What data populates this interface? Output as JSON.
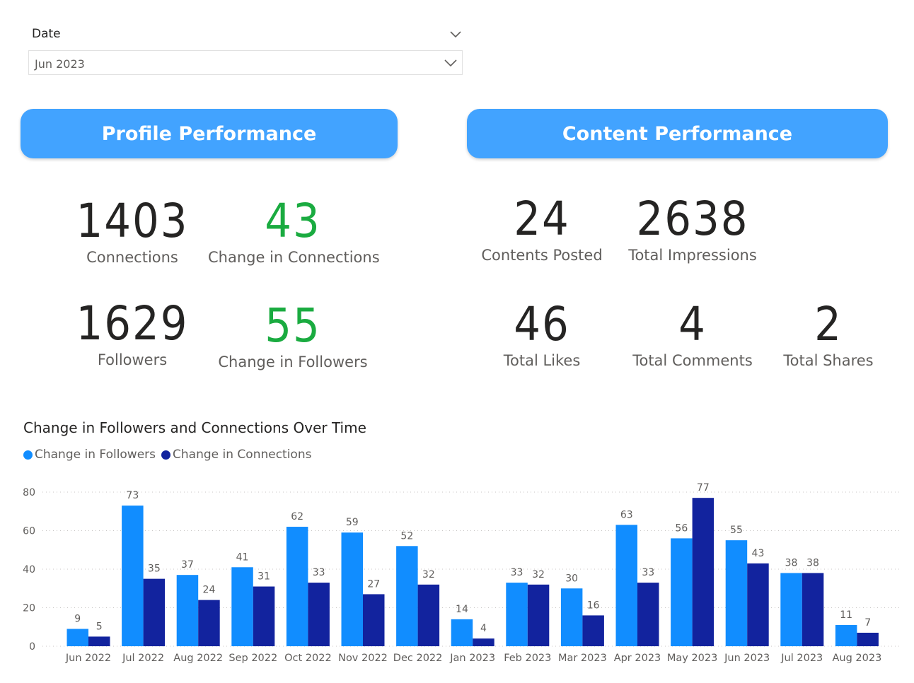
{
  "slicer": {
    "title": "Date",
    "value": "Jun 2023"
  },
  "sections": {
    "profile": "Profile Performance",
    "content": "Content Performance"
  },
  "kpis": {
    "connections": {
      "value": "1403",
      "label": "Connections"
    },
    "change_connections": {
      "value": "43",
      "label": "Change in Connections"
    },
    "followers": {
      "value": "1629",
      "label": "Followers"
    },
    "change_followers": {
      "value": "55",
      "label": "Change in Followers"
    },
    "contents_posted": {
      "value": "24",
      "label": "Contents Posted"
    },
    "total_impressions": {
      "value": "2638",
      "label": "Total Impressions"
    },
    "total_likes": {
      "value": "46",
      "label": "Total Likes"
    },
    "total_comments": {
      "value": "4",
      "label": "Total Comments"
    },
    "total_shares": {
      "value": "2",
      "label": "Total Shares"
    }
  },
  "colors": {
    "header": "#42a3ff",
    "positive": "#1aab40",
    "followers": "#118dff",
    "connections": "#12239e"
  },
  "chart_data": {
    "type": "bar",
    "title": "Change in Followers and Connections Over Time",
    "categories": [
      "Jun 2022",
      "Jul 2022",
      "Aug 2022",
      "Sep 2022",
      "Oct 2022",
      "Nov 2022",
      "Dec 2022",
      "Jan 2023",
      "Feb 2023",
      "Mar 2023",
      "Apr 2023",
      "May 2023",
      "Jun 2023",
      "Jul 2023",
      "Aug 2023"
    ],
    "series": [
      {
        "name": "Change in Followers",
        "color": "#118dff",
        "values": [
          9,
          73,
          37,
          41,
          62,
          59,
          52,
          14,
          33,
          30,
          63,
          56,
          55,
          38,
          11
        ]
      },
      {
        "name": "Change in Connections",
        "color": "#12239e",
        "values": [
          5,
          35,
          24,
          31,
          33,
          27,
          32,
          4,
          32,
          16,
          33,
          77,
          43,
          38,
          7
        ]
      }
    ],
    "yticks": [
      "0",
      "20",
      "40",
      "60",
      "80"
    ],
    "ylim": [
      0,
      80
    ],
    "grid": true,
    "legend": "top-left"
  }
}
